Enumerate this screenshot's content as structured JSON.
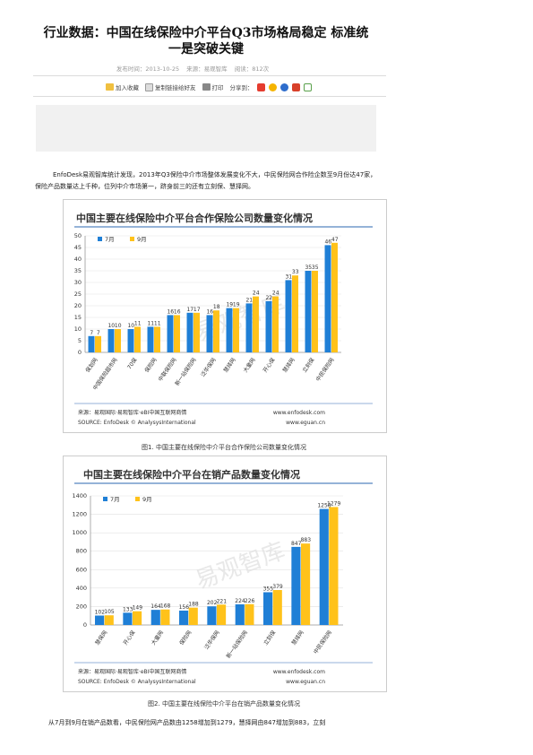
{
  "article": {
    "title_line1": "行业数据：中国在线保险中介平台Q3市场格局稳定 标准统",
    "title_line2": "一是突破关键",
    "date": "发布时间：2013-10-25",
    "source": "来源：易观智库",
    "views": "阅读：812次"
  },
  "toolbar": {
    "favorite": "加入收藏",
    "copy_link": "复制链接给好友",
    "print": "打印",
    "share": "分享到："
  },
  "body": {
    "para1": "EnfoDesk易观智库统计发现，2013年Q3保险中介市场整体发展变化不大，中民保险网合作险企数至9月份达47家，保险产品数量达上千种，位列中介市场第一，跻身前三的还有立刻保、慧择网。",
    "para2": "从7月到9月在销产品数看，中民保险网产品数由1258增加到1279，慧择网由847增加到883，立刻"
  },
  "figures": [
    {
      "caption": "图1. 中国主要在线保险中介平台合作保险公司数量变化情况",
      "source_line1": "来源：易观国际·易观智库·eBI中国互联网商情",
      "source_line2": "SOURCE: EnfoDesk © AnalysysInternational",
      "site1": "www.enfodesk.com",
      "site2": "www.eguan.cn",
      "watermark": "易观智库"
    },
    {
      "caption": "图2. 中国主要在线保险中介平台在销产品数量变化情况",
      "source_line1": "来源：易观国际·易观智库·eBI中国互联网商情",
      "source_line2": "SOURCE: EnfoDesk © AnalysysInternational",
      "site1": "www.enfodesk.com",
      "site2": "www.eguan.cn",
      "watermark": "易观智库"
    }
  ],
  "chart_data": [
    {
      "type": "bar",
      "title": "中国主要在线保险中介平台合作保险公司数量变化情况",
      "categories": [
        "保划网",
        "中国保险超市网",
        "70保",
        "保险网",
        "中联保险网",
        "新一站保险网",
        "泛华保网",
        "慧择网",
        "大童网",
        "开心保",
        "慧择网",
        "立刻保",
        "中民保险网"
      ],
      "series": [
        {
          "name": "7月",
          "values": [
            7,
            10,
            10,
            11,
            16,
            17,
            16,
            19,
            21,
            22,
            31,
            35,
            46
          ]
        },
        {
          "name": "9月",
          "values": [
            7,
            10,
            11,
            11,
            16,
            17,
            18,
            19,
            24,
            24,
            33,
            35,
            47
          ]
        }
      ],
      "ylim": [
        0,
        50
      ],
      "yticks": [
        0,
        5,
        10,
        15,
        20,
        25,
        30,
        35,
        40,
        45,
        50
      ],
      "colors": {
        "jul": "#1f7fd6",
        "sep": "#ffc21a"
      },
      "legend": "top-left",
      "grid": true
    },
    {
      "type": "bar",
      "title": "中国主要在线保险中介平台在销产品数量变化情况",
      "categories": [
        "慧保网",
        "开心保",
        "大童网",
        "保险网",
        "泛华保网",
        "新一站保险网",
        "立刻保",
        "慧择网",
        "中民保险网"
      ],
      "series": [
        {
          "name": "7月",
          "values": [
            102,
            133,
            164,
            156,
            202,
            224,
            355,
            847,
            1258
          ]
        },
        {
          "name": "9月",
          "values": [
            105,
            149,
            168,
            188,
            221,
            226,
            379,
            883,
            1279
          ]
        }
      ],
      "ylim": [
        0,
        1400
      ],
      "yticks": [
        0,
        200,
        400,
        600,
        800,
        1000,
        1200,
        1400
      ],
      "colors": {
        "jul": "#1f7fd6",
        "sep": "#ffc21a"
      },
      "legend": "top-left",
      "grid": true
    }
  ]
}
